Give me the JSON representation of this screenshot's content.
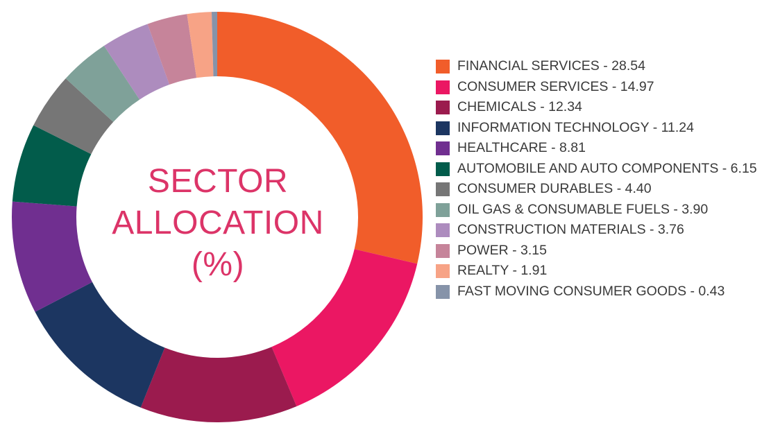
{
  "chart_data": {
    "type": "pie",
    "subtype": "donut",
    "title_lines": [
      "SECTOR",
      "ALLOCATION",
      "(%)"
    ],
    "legend_placement": "right",
    "direction": "clockwise from top",
    "slices": [
      {
        "label": "FINANCIAL SERVICES",
        "value": 28.54,
        "value_text": "28.54",
        "color": "#f15d2a"
      },
      {
        "label": "CONSUMER SERVICES",
        "value": 14.97,
        "value_text": "14.97",
        "color": "#eb1763"
      },
      {
        "label": "CHEMICALS",
        "value": 12.34,
        "value_text": "12.34",
        "color": "#9b1b4e"
      },
      {
        "label": "INFORMATION TECHNOLOGY",
        "value": 11.24,
        "value_text": "11.24",
        "color": "#1c3661"
      },
      {
        "label": "HEALTHCARE",
        "value": 8.81,
        "value_text": "8.81",
        "color": "#702f90"
      },
      {
        "label": "AUTOMOBILE AND AUTO COMPONENTS",
        "value": 6.15,
        "value_text": "6.15",
        "color": "#025c4b"
      },
      {
        "label": "CONSUMER DURABLES",
        "value": 4.4,
        "value_text": "4.40",
        "color": "#767676"
      },
      {
        "label": "OIL GAS & CONSUMABLE FUELS",
        "value": 3.9,
        "value_text": "3.90",
        "color": "#7fa199"
      },
      {
        "label": "CONSTRUCTION MATERIALS",
        "value": 3.76,
        "value_text": "3.76",
        "color": "#ad8cbe"
      },
      {
        "label": "POWER",
        "value": 3.15,
        "value_text": "3.15",
        "color": "#c6849a"
      },
      {
        "label": "REALTY",
        "value": 1.91,
        "value_text": "1.91",
        "color": "#f7a386"
      },
      {
        "label": "FAST MOVING CONSUMER GOODS",
        "value": 0.43,
        "value_text": "0.43",
        "color": "#8693a9"
      }
    ]
  }
}
